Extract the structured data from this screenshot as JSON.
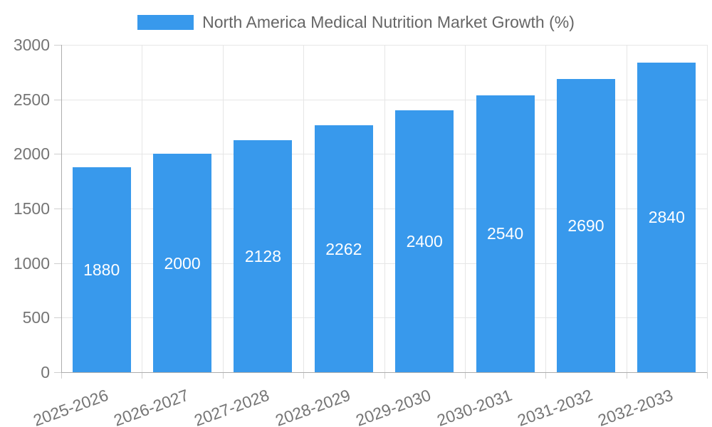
{
  "legend": {
    "label": "North America Medical Nutrition Market Growth (%)"
  },
  "chart_data": {
    "type": "bar",
    "title": "North America Medical Nutrition Market Growth (%)",
    "categories": [
      "2025-2026",
      "2026-2027",
      "2027-2028",
      "2028-2029",
      "2029-2030",
      "2030-2031",
      "2031-2032",
      "2032-2033"
    ],
    "values": [
      1880,
      2000,
      2128,
      2262,
      2400,
      2540,
      2690,
      2840
    ],
    "xlabel": "",
    "ylabel": "",
    "ylim": [
      0,
      3000
    ],
    "yticks": [
      0,
      500,
      1000,
      1500,
      2000,
      2500,
      3000
    ],
    "grid": true,
    "legend_position": "top",
    "bar_color": "#3899EC",
    "value_label_color": "#ffffff",
    "tick_text_color": "#757575",
    "legend_text_color": "#666666",
    "grid_color": "#E6E6E6",
    "tick_mark_color": "#CFCFCF",
    "axis_line_color": "#ADADAD",
    "background_color": "#ffffff"
  }
}
